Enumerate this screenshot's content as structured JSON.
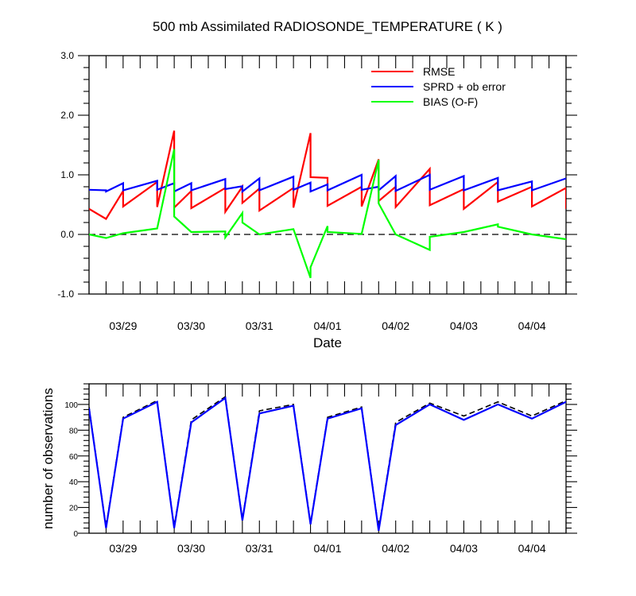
{
  "chart_data": [
    {
      "type": "line",
      "title": "500 mb Assimilated RADIOSONDE_TEMPERATURE ( K )",
      "xlabel": "Date",
      "ylabel": "",
      "x_tick_labels": [
        "03/29",
        "03/30",
        "03/31",
        "04/01",
        "04/02",
        "04/03",
        "04/04"
      ],
      "x_range": [
        0,
        14
      ],
      "ylim": [
        -1.0,
        3.0
      ],
      "y_ticks": [
        -1.0,
        0.0,
        1.0,
        2.0,
        3.0
      ],
      "y_tick_labels": [
        "-1.0",
        "0.0",
        "1.0",
        "2.0",
        "3.0"
      ],
      "zero_line": "dashed",
      "legend_position": "top-right",
      "series": [
        {
          "name": "RMSE",
          "color": "#ff0000",
          "points": [
            [
              0,
              0.43
            ],
            [
              0.5,
              0.26
            ],
            [
              1,
              0.73
            ],
            [
              1,
              0.47
            ],
            [
              2,
              0.88
            ],
            [
              2,
              0.46
            ],
            [
              2.5,
              1.74
            ],
            [
              2.5,
              0.45
            ],
            [
              3,
              0.73
            ],
            [
              3,
              0.44
            ],
            [
              4,
              0.78
            ],
            [
              4,
              0.38
            ],
            [
              4.5,
              0.8
            ],
            [
              4.5,
              0.53
            ],
            [
              5,
              0.77
            ],
            [
              5,
              0.4
            ],
            [
              6,
              0.78
            ],
            [
              6,
              0.45
            ],
            [
              6.5,
              1.7
            ],
            [
              6.5,
              0.96
            ],
            [
              7,
              0.95
            ],
            [
              7,
              0.48
            ],
            [
              8,
              0.8
            ],
            [
              8,
              0.47
            ],
            [
              8.5,
              1.26
            ],
            [
              8.5,
              0.56
            ],
            [
              9,
              0.8
            ],
            [
              9,
              0.46
            ],
            [
              10,
              1.1
            ],
            [
              10,
              0.49
            ],
            [
              11,
              0.76
            ],
            [
              11,
              0.43
            ],
            [
              12,
              0.88
            ],
            [
              12,
              0.55
            ],
            [
              13,
              0.8
            ],
            [
              13,
              0.47
            ],
            [
              14,
              0.78
            ],
            [
              14,
              0.43
            ]
          ]
        },
        {
          "name": "SPRD + ob error",
          "color": "#0000ff",
          "points": [
            [
              0,
              0.75
            ],
            [
              0.5,
              0.74
            ],
            [
              0.5,
              0.72
            ],
            [
              1,
              0.86
            ],
            [
              1,
              0.74
            ],
            [
              2,
              0.9
            ],
            [
              2,
              0.75
            ],
            [
              2.5,
              0.86
            ],
            [
              2.5,
              0.72
            ],
            [
              3,
              0.86
            ],
            [
              3,
              0.74
            ],
            [
              4,
              0.93
            ],
            [
              4,
              0.76
            ],
            [
              4.5,
              0.81
            ],
            [
              4.5,
              0.72
            ],
            [
              5,
              0.94
            ],
            [
              5,
              0.74
            ],
            [
              6,
              0.97
            ],
            [
              6,
              0.75
            ],
            [
              6.5,
              0.87
            ],
            [
              6.5,
              0.72
            ],
            [
              7,
              0.84
            ],
            [
              7,
              0.74
            ],
            [
              8,
              1.0
            ],
            [
              8,
              0.75
            ],
            [
              8.5,
              0.8
            ],
            [
              8.5,
              0.74
            ],
            [
              9,
              0.98
            ],
            [
              9,
              0.73
            ],
            [
              10,
              1.0
            ],
            [
              10,
              0.75
            ],
            [
              11,
              0.98
            ],
            [
              11,
              0.74
            ],
            [
              12,
              0.95
            ],
            [
              12,
              0.74
            ],
            [
              13,
              0.89
            ],
            [
              13,
              0.74
            ],
            [
              14,
              0.94
            ]
          ]
        },
        {
          "name": "BIAS (O-F)",
          "color": "#00ff00",
          "points": [
            [
              0,
              0.0
            ],
            [
              0.5,
              -0.06
            ],
            [
              1,
              0.02
            ],
            [
              2,
              0.1
            ],
            [
              2.5,
              1.43
            ],
            [
              2.5,
              0.3
            ],
            [
              3,
              0.04
            ],
            [
              4,
              0.05
            ],
            [
              4,
              -0.05
            ],
            [
              4.5,
              0.36
            ],
            [
              4.5,
              0.2
            ],
            [
              5,
              0.0
            ],
            [
              6,
              0.09
            ],
            [
              6.5,
              -0.73
            ],
            [
              6.5,
              -0.55
            ],
            [
              7,
              0.14
            ],
            [
              7,
              0.04
            ],
            [
              8,
              0.01
            ],
            [
              8.5,
              1.25
            ],
            [
              8.5,
              0.52
            ],
            [
              9,
              0.0
            ],
            [
              10,
              -0.26
            ],
            [
              10,
              -0.04
            ],
            [
              11,
              0.04
            ],
            [
              12,
              0.17
            ],
            [
              12,
              0.13
            ],
            [
              13,
              0.0
            ],
            [
              14,
              -0.08
            ]
          ]
        }
      ]
    },
    {
      "type": "line",
      "title": "",
      "xlabel": "",
      "ylabel": "number of observations",
      "x_tick_labels": [
        "03/29",
        "03/30",
        "03/31",
        "04/01",
        "04/02",
        "04/03",
        "04/04"
      ],
      "x_range": [
        0,
        14
      ],
      "ylim": [
        0,
        116
      ],
      "y_ticks": [
        0,
        20,
        40,
        60,
        80,
        100
      ],
      "y_tick_labels": [
        "0",
        "20",
        "40",
        "60",
        "80",
        "100"
      ],
      "series": [
        {
          "color": "#000000",
          "style": "dashed",
          "points": [
            [
              0,
              98
            ],
            [
              0.5,
              5
            ],
            [
              1,
              90
            ],
            [
              2,
              103
            ],
            [
              2.5,
              5
            ],
            [
              3,
              88
            ],
            [
              4,
              106
            ],
            [
              4.5,
              11
            ],
            [
              5,
              95
            ],
            [
              6,
              100
            ],
            [
              6.5,
              8
            ],
            [
              7,
              90
            ],
            [
              8,
              98
            ],
            [
              8.5,
              3
            ],
            [
              9,
              86
            ],
            [
              10,
              101
            ],
            [
              11,
              91
            ],
            [
              12,
              102
            ],
            [
              13,
              91
            ],
            [
              14,
              103
            ]
          ]
        },
        {
          "color": "#0000ff",
          "style": "solid",
          "points": [
            [
              0,
              97
            ],
            [
              0.5,
              4
            ],
            [
              1,
              89
            ],
            [
              2,
              102
            ],
            [
              2.5,
              4
            ],
            [
              3,
              86
            ],
            [
              4,
              105
            ],
            [
              4.5,
              10
            ],
            [
              5,
              93
            ],
            [
              6,
              99
            ],
            [
              6.5,
              7
            ],
            [
              7,
              89
            ],
            [
              8,
              97
            ],
            [
              8.5,
              2
            ],
            [
              9,
              84
            ],
            [
              10,
              100
            ],
            [
              11,
              88
            ],
            [
              12,
              100
            ],
            [
              13,
              89
            ],
            [
              14,
              102
            ]
          ]
        }
      ]
    }
  ]
}
